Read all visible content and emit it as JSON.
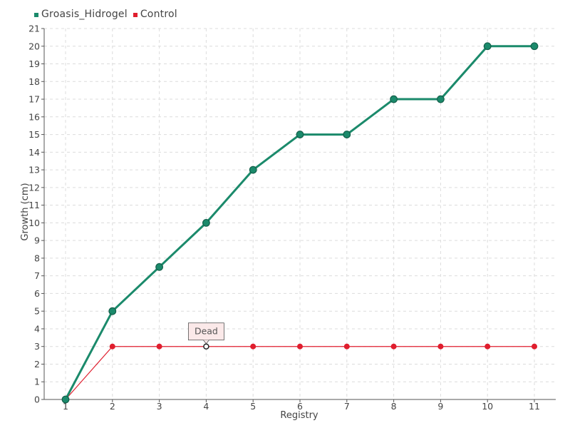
{
  "colors": {
    "series_1": "#1b8a6b",
    "series_2": "#e01e2e",
    "grid": "#dcdcdc",
    "axis": "#555555",
    "tooltip_fill": "#fbe9e9",
    "tooltip_border": "#555555"
  },
  "chart_data": {
    "type": "line",
    "title": "",
    "xlabel": "Registry",
    "ylabel": "Growth (cm)",
    "categories": [
      "1",
      "2",
      "3",
      "4",
      "5",
      "6",
      "7",
      "8",
      "9",
      "10",
      "11"
    ],
    "ylim": [
      0,
      21
    ],
    "ytick_step": 1,
    "grid": true,
    "legend_position": "top-left",
    "series": [
      {
        "name": "Groasis_Hidrogel",
        "values": [
          0,
          5,
          7.5,
          10,
          13,
          15,
          15,
          17,
          17,
          20,
          20
        ]
      },
      {
        "name": "Control",
        "values": [
          0,
          3,
          3,
          3,
          3,
          3,
          3,
          3,
          3,
          3,
          3
        ]
      }
    ],
    "annotations": [
      {
        "series": "Control",
        "category": "4",
        "value": 3,
        "text": "Dead"
      }
    ]
  }
}
